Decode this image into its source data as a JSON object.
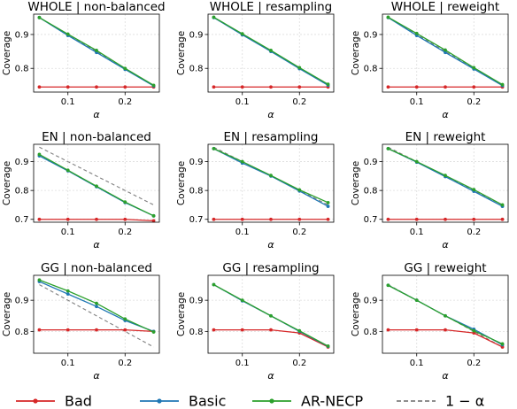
{
  "legend": {
    "items": [
      {
        "label": "Bad",
        "color": "#d62728",
        "style": "solid-dot"
      },
      {
        "label": "Basic",
        "color": "#1f77b4",
        "style": "solid-dot"
      },
      {
        "label": "AR-NECP",
        "color": "#2ca02c",
        "style": "solid-dot"
      },
      {
        "label": "1 − α",
        "color": "#7f7f7f",
        "style": "dashed"
      }
    ]
  },
  "chart_data": [
    {
      "type": "line",
      "title": "WHOLE | non-balanced",
      "xlabel": "α",
      "ylabel": "Coverage",
      "x": [
        0.05,
        0.1,
        0.15,
        0.2,
        0.25
      ],
      "xlim": [
        0.04,
        0.26
      ],
      "ylim": [
        0.73,
        0.96
      ],
      "xticks": [
        "0.1",
        "0.2"
      ],
      "yticks": [
        "0.8",
        "0.9"
      ],
      "grid": true,
      "series": [
        {
          "name": "Bad",
          "values": [
            0.745,
            0.745,
            0.745,
            0.745,
            0.745
          ]
        },
        {
          "name": "Basic",
          "values": [
            0.95,
            0.897,
            0.847,
            0.797,
            0.748
          ]
        },
        {
          "name": "AR-NECP",
          "values": [
            0.95,
            0.901,
            0.853,
            0.8,
            0.75
          ]
        },
        {
          "name": "1 − α",
          "values": [
            0.95,
            0.9,
            0.85,
            0.8,
            0.75
          ]
        }
      ]
    },
    {
      "type": "line",
      "title": "WHOLE | resampling",
      "xlabel": "α",
      "ylabel": "Coverage",
      "x": [
        0.05,
        0.1,
        0.15,
        0.2,
        0.25
      ],
      "xlim": [
        0.04,
        0.26
      ],
      "ylim": [
        0.73,
        0.96
      ],
      "xticks": [
        "0.1",
        "0.2"
      ],
      "yticks": [
        "0.8",
        "0.9"
      ],
      "grid": true,
      "series": [
        {
          "name": "Bad",
          "values": [
            0.745,
            0.745,
            0.745,
            0.745,
            0.745
          ]
        },
        {
          "name": "Basic",
          "values": [
            0.95,
            0.899,
            0.85,
            0.799,
            0.75
          ]
        },
        {
          "name": "AR-NECP",
          "values": [
            0.951,
            0.902,
            0.853,
            0.802,
            0.753
          ]
        },
        {
          "name": "1 − α",
          "values": [
            0.95,
            0.9,
            0.85,
            0.8,
            0.75
          ]
        }
      ]
    },
    {
      "type": "line",
      "title": "WHOLE | reweight",
      "xlabel": "α",
      "ylabel": "Coverage",
      "x": [
        0.05,
        0.1,
        0.15,
        0.2,
        0.25
      ],
      "xlim": [
        0.04,
        0.26
      ],
      "ylim": [
        0.73,
        0.96
      ],
      "xticks": [
        "0.1",
        "0.2"
      ],
      "yticks": [
        "0.8",
        "0.9"
      ],
      "grid": true,
      "series": [
        {
          "name": "Bad",
          "values": [
            0.745,
            0.745,
            0.745,
            0.745,
            0.745
          ]
        },
        {
          "name": "Basic",
          "values": [
            0.95,
            0.897,
            0.847,
            0.798,
            0.749
          ]
        },
        {
          "name": "AR-NECP",
          "values": [
            0.951,
            0.903,
            0.854,
            0.802,
            0.752
          ]
        },
        {
          "name": "1 − α",
          "values": [
            0.95,
            0.9,
            0.85,
            0.8,
            0.75
          ]
        }
      ]
    },
    {
      "type": "line",
      "title": "EN | non-balanced",
      "xlabel": "α",
      "ylabel": "Coverage",
      "x": [
        0.05,
        0.1,
        0.15,
        0.2,
        0.25
      ],
      "xlim": [
        0.04,
        0.26
      ],
      "ylim": [
        0.69,
        0.96
      ],
      "xticks": [
        "0.1",
        "0.2"
      ],
      "yticks": [
        "0.7",
        "0.8",
        "0.9"
      ],
      "grid": true,
      "series": [
        {
          "name": "Bad",
          "values": [
            0.7,
            0.7,
            0.7,
            0.7,
            0.695
          ]
        },
        {
          "name": "Basic",
          "values": [
            0.92,
            0.868,
            0.813,
            0.758,
            0.712
          ]
        },
        {
          "name": "AR-NECP",
          "values": [
            0.925,
            0.87,
            0.815,
            0.76,
            0.712
          ]
        },
        {
          "name": "1 − α",
          "values": [
            0.95,
            0.9,
            0.85,
            0.8,
            0.75
          ]
        }
      ]
    },
    {
      "type": "line",
      "title": "EN | resampling",
      "xlabel": "α",
      "ylabel": "Coverage",
      "x": [
        0.05,
        0.1,
        0.15,
        0.2,
        0.25
      ],
      "xlim": [
        0.04,
        0.26
      ],
      "ylim": [
        0.69,
        0.96
      ],
      "xticks": [
        "0.1",
        "0.2"
      ],
      "yticks": [
        "0.7",
        "0.8",
        "0.9"
      ],
      "grid": true,
      "series": [
        {
          "name": "Bad",
          "values": [
            0.7,
            0.7,
            0.7,
            0.7,
            0.7
          ]
        },
        {
          "name": "Basic",
          "values": [
            0.945,
            0.895,
            0.85,
            0.798,
            0.745
          ]
        },
        {
          "name": "AR-NECP",
          "values": [
            0.945,
            0.9,
            0.852,
            0.802,
            0.758
          ]
        },
        {
          "name": "1 − α",
          "values": [
            0.95,
            0.9,
            0.85,
            0.8,
            0.75
          ]
        }
      ]
    },
    {
      "type": "line",
      "title": "EN | reweight",
      "xlabel": "α",
      "ylabel": "Coverage",
      "x": [
        0.05,
        0.1,
        0.15,
        0.2,
        0.25
      ],
      "xlim": [
        0.04,
        0.26
      ],
      "ylim": [
        0.69,
        0.96
      ],
      "xticks": [
        "0.1",
        "0.2"
      ],
      "yticks": [
        "0.7",
        "0.8",
        "0.9"
      ],
      "grid": true,
      "series": [
        {
          "name": "Bad",
          "values": [
            0.7,
            0.7,
            0.7,
            0.7,
            0.7
          ]
        },
        {
          "name": "Basic",
          "values": [
            0.945,
            0.898,
            0.848,
            0.797,
            0.745
          ]
        },
        {
          "name": "AR-NECP",
          "values": [
            0.945,
            0.9,
            0.852,
            0.803,
            0.75
          ]
        },
        {
          "name": "1 − α",
          "values": [
            0.95,
            0.9,
            0.85,
            0.8,
            0.75
          ]
        }
      ]
    },
    {
      "type": "line",
      "title": "GG | non-balanced",
      "xlabel": "α",
      "ylabel": "Coverage",
      "x": [
        0.05,
        0.1,
        0.15,
        0.2,
        0.25
      ],
      "xlim": [
        0.04,
        0.26
      ],
      "ylim": [
        0.73,
        0.98
      ],
      "xticks": [
        "0.1",
        "0.2"
      ],
      "yticks": [
        "0.8",
        "0.9"
      ],
      "grid": true,
      "series": [
        {
          "name": "Bad",
          "values": [
            0.805,
            0.805,
            0.805,
            0.805,
            0.8
          ]
        },
        {
          "name": "Basic",
          "values": [
            0.96,
            0.92,
            0.88,
            0.835,
            0.8
          ]
        },
        {
          "name": "AR-NECP",
          "values": [
            0.965,
            0.93,
            0.89,
            0.84,
            0.798
          ]
        },
        {
          "name": "1 − α",
          "values": [
            0.95,
            0.9,
            0.85,
            0.8,
            0.75
          ]
        }
      ]
    },
    {
      "type": "line",
      "title": "GG | resampling",
      "xlabel": "α",
      "ylabel": "Coverage",
      "x": [
        0.05,
        0.1,
        0.15,
        0.2,
        0.25
      ],
      "xlim": [
        0.04,
        0.26
      ],
      "ylim": [
        0.73,
        0.98
      ],
      "xticks": [
        "0.1",
        "0.2"
      ],
      "yticks": [
        "0.8",
        "0.9"
      ],
      "grid": true,
      "series": [
        {
          "name": "Bad",
          "values": [
            0.805,
            0.805,
            0.805,
            0.795,
            0.75
          ]
        },
        {
          "name": "Basic",
          "values": [
            0.95,
            0.898,
            0.85,
            0.8,
            0.752
          ]
        },
        {
          "name": "AR-NECP",
          "values": [
            0.95,
            0.9,
            0.85,
            0.802,
            0.753
          ]
        },
        {
          "name": "1 − α",
          "values": [
            0.95,
            0.9,
            0.85,
            0.8,
            0.75
          ]
        }
      ]
    },
    {
      "type": "line",
      "title": "GG | reweight",
      "xlabel": "α",
      "ylabel": "Coverage",
      "x": [
        0.05,
        0.1,
        0.15,
        0.2,
        0.25
      ],
      "xlim": [
        0.04,
        0.26
      ],
      "ylim": [
        0.73,
        0.98
      ],
      "xticks": [
        "0.1",
        "0.2"
      ],
      "yticks": [
        "0.8",
        "0.9"
      ],
      "grid": true,
      "series": [
        {
          "name": "Bad",
          "values": [
            0.805,
            0.805,
            0.805,
            0.795,
            0.75
          ]
        },
        {
          "name": "Basic",
          "values": [
            0.948,
            0.9,
            0.85,
            0.807,
            0.757
          ]
        },
        {
          "name": "AR-NECP",
          "values": [
            0.948,
            0.9,
            0.85,
            0.802,
            0.76
          ]
        },
        {
          "name": "1 − α",
          "values": [
            0.95,
            0.9,
            0.85,
            0.8,
            0.75
          ]
        }
      ]
    }
  ]
}
